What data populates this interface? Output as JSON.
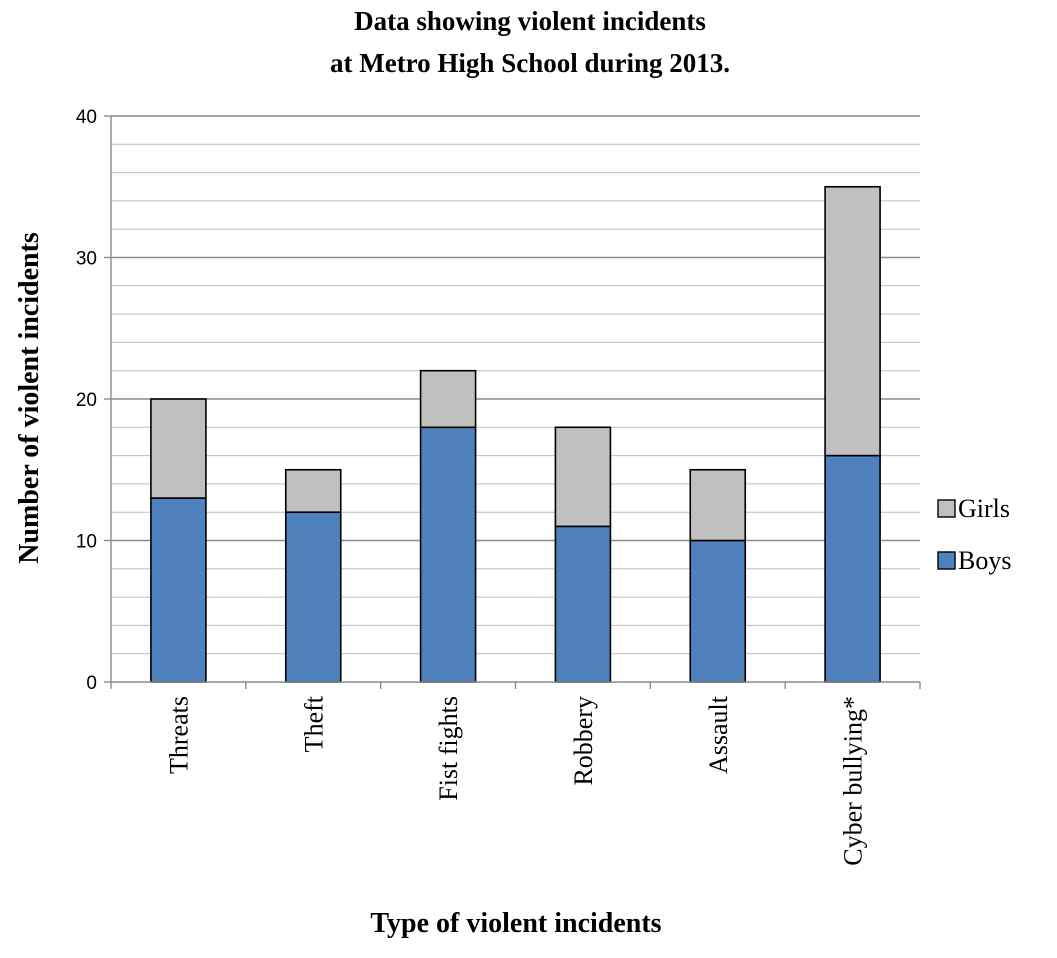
{
  "chart_data": {
    "type": "bar",
    "stacked": true,
    "title": [
      "Data showing violent incidents",
      "at Metro High School during 2013."
    ],
    "xlabel": "Type of violent incidents",
    "ylabel": "Number of  violent incidents",
    "categories": [
      "Threats",
      "Theft",
      "Fist fights",
      "Robbery",
      "Assault",
      "Cyber bullying*"
    ],
    "series": [
      {
        "name": "Boys",
        "color": "#4f81bd",
        "values": [
          13,
          12,
          18,
          11,
          10,
          16
        ]
      },
      {
        "name": "Girls",
        "color": "#c0c0c0",
        "values": [
          7,
          3,
          4,
          7,
          5,
          19
        ]
      }
    ],
    "ylim": [
      0,
      40
    ],
    "yticks": [
      0,
      10,
      20,
      30,
      40
    ],
    "minor_gridline_step": 2,
    "grid": true,
    "legend_position": "right"
  }
}
